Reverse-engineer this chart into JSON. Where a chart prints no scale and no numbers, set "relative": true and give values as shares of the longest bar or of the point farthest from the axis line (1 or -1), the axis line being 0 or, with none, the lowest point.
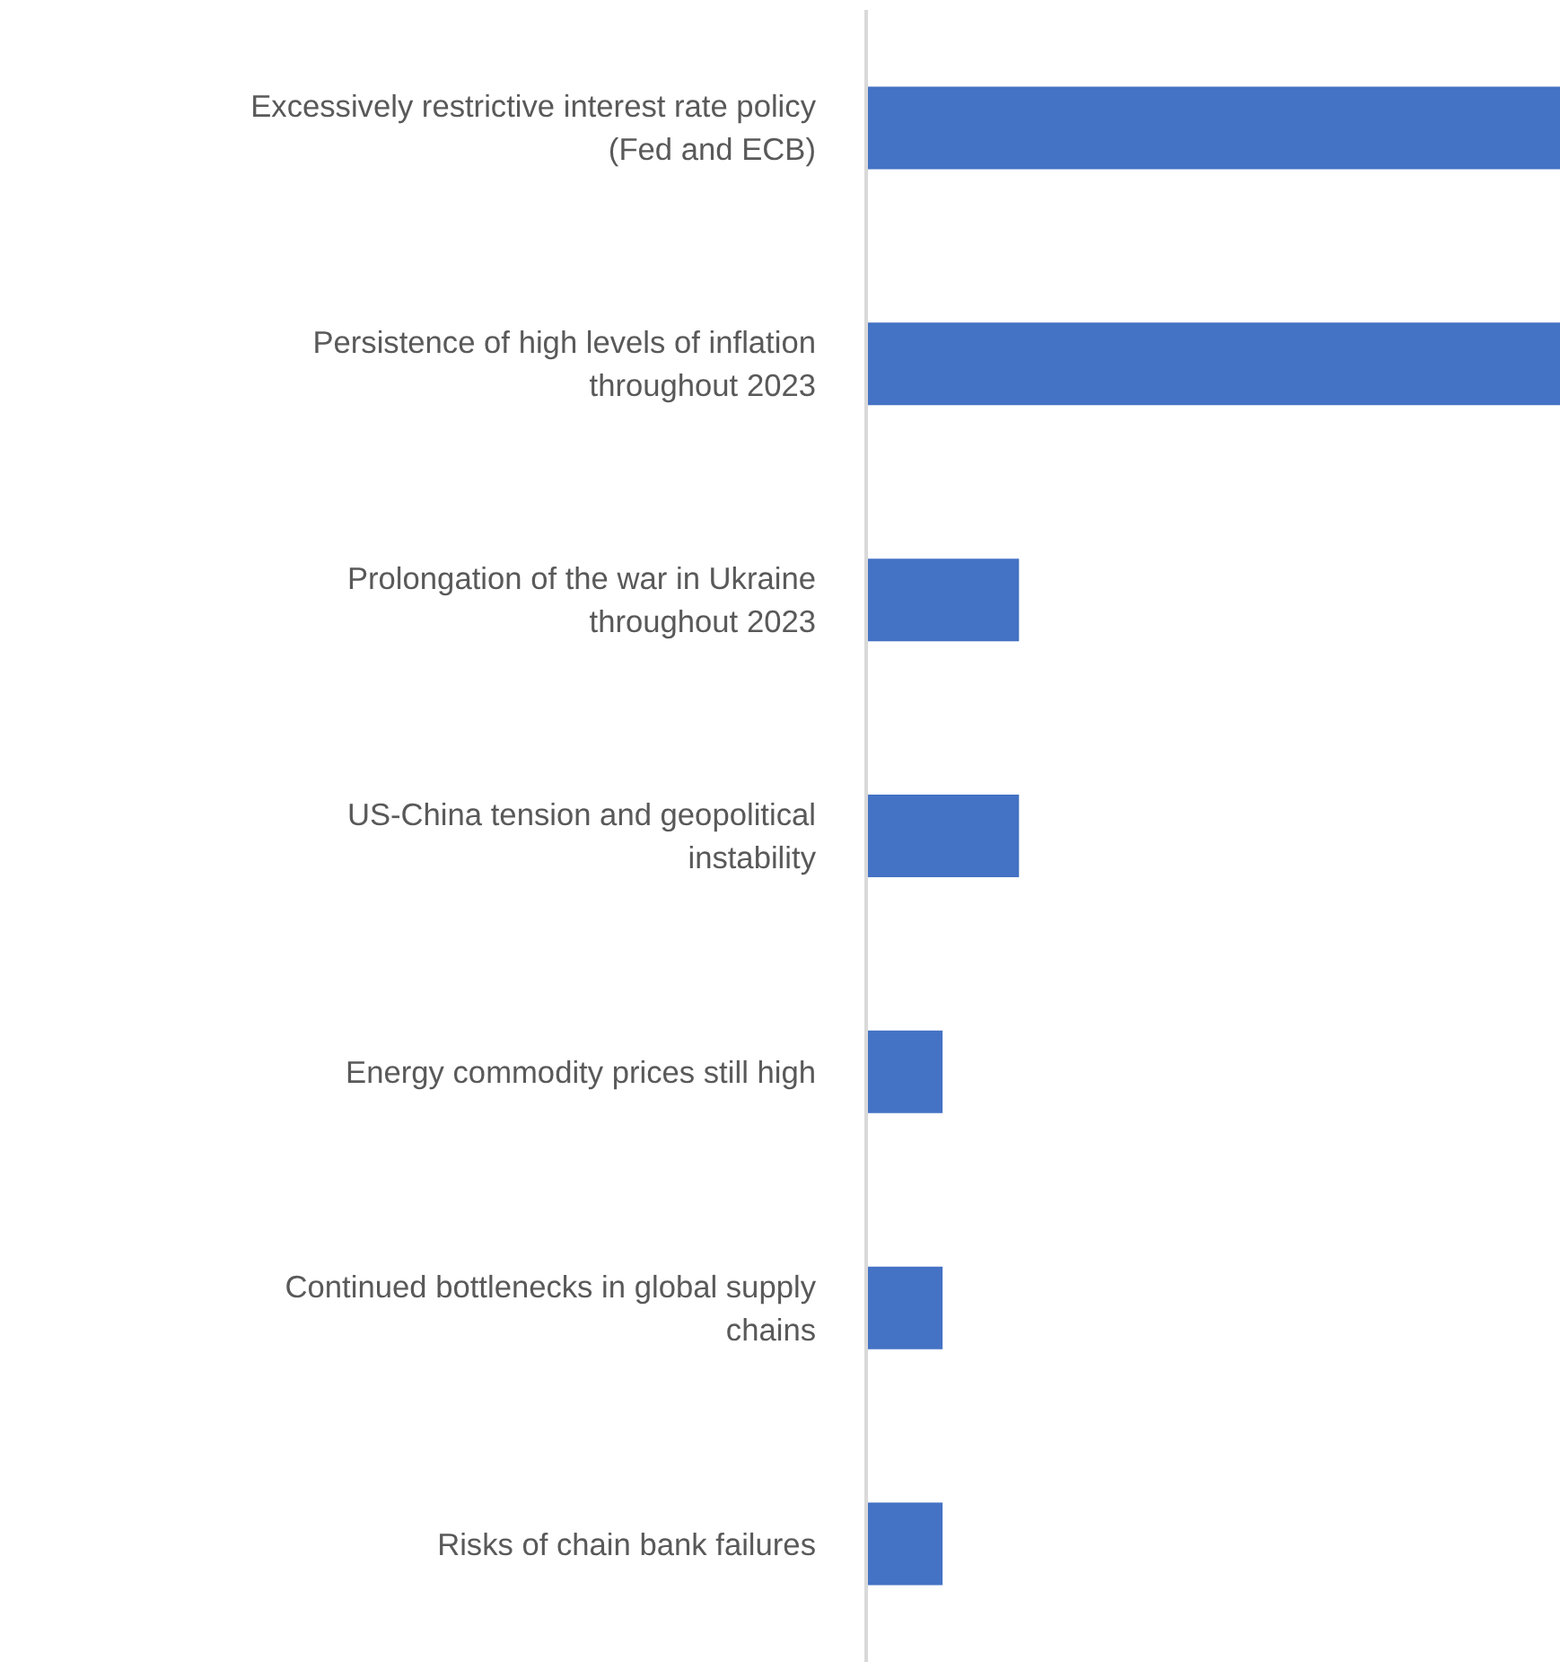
{
  "chart_data": {
    "type": "bar",
    "orientation": "horizontal",
    "relative": true,
    "categories": [
      "Excessively restrictive interest rate policy (Fed and ECB)",
      "Persistence of high levels of inflation throughout 2023",
      "Prolongation of the war in Ukraine throughout 2023",
      "US-China tension and geopolitical instability",
      "Energy commodity prices still high",
      "Continued bottlenecks in global supply chains",
      "Risks of chain bank failures"
    ],
    "values": [
      1,
      1,
      0.22,
      0.22,
      0.11,
      0.11,
      0.11
    ],
    "color": "#4472c4",
    "grid": false
  }
}
